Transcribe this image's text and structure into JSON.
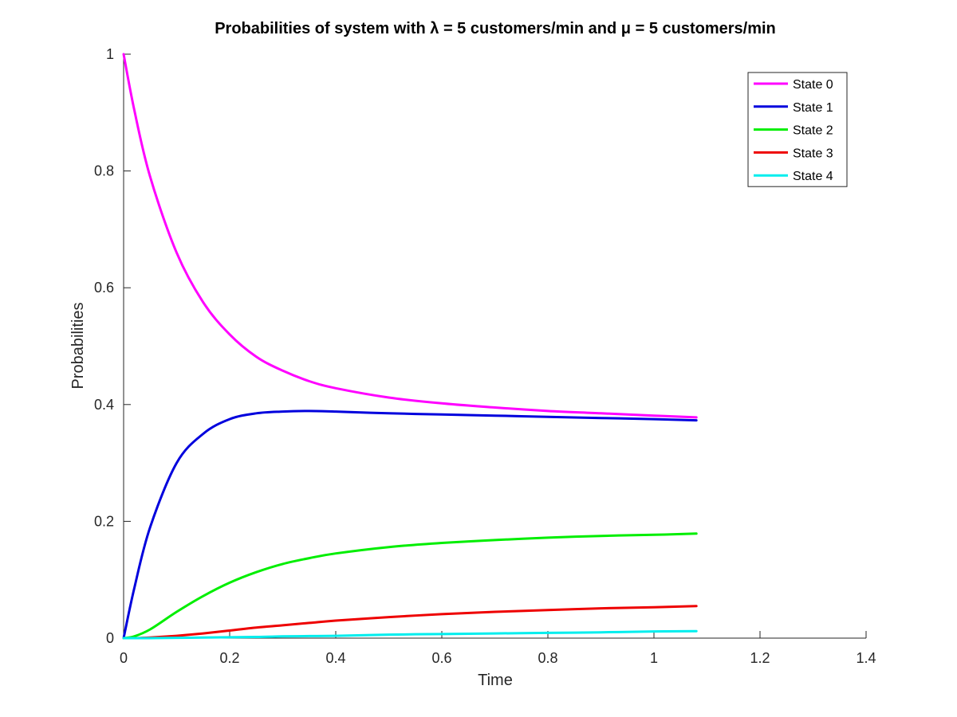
{
  "chart_data": {
    "type": "line",
    "title": "Probabilities of system with λ = 5 customers/min and μ = 5 customers/min",
    "xlabel": "Time",
    "ylabel": "Probabilities",
    "xlim": [
      0,
      1.4
    ],
    "ylim": [
      0,
      1
    ],
    "xticks": [
      0,
      0.2,
      0.4,
      0.6,
      0.8,
      1,
      1.2,
      1.4
    ],
    "xtick_labels": [
      "0",
      "0.2",
      "0.4",
      "0.6",
      "0.8",
      "1",
      "1.2",
      "1.4"
    ],
    "yticks": [
      0,
      0.2,
      0.4,
      0.6,
      0.8,
      1
    ],
    "ytick_labels": [
      "0",
      "0.2",
      "0.4",
      "0.6",
      "0.8",
      "1"
    ],
    "grid": false,
    "legend_position": "top-right",
    "x": [
      0,
      0.02,
      0.05,
      0.1,
      0.15,
      0.2,
      0.25,
      0.3,
      0.35,
      0.4,
      0.5,
      0.6,
      0.7,
      0.8,
      0.9,
      1.0,
      1.08
    ],
    "series": [
      {
        "name": "State 0",
        "color": "#ff00ff",
        "values": [
          1.0,
          0.905,
          0.79,
          0.66,
          0.575,
          0.52,
          0.482,
          0.458,
          0.44,
          0.428,
          0.412,
          0.402,
          0.395,
          0.389,
          0.385,
          0.381,
          0.378
        ]
      },
      {
        "name": "State 1",
        "color": "#0000dd",
        "values": [
          0.0,
          0.085,
          0.19,
          0.3,
          0.35,
          0.375,
          0.385,
          0.388,
          0.389,
          0.388,
          0.385,
          0.383,
          0.381,
          0.379,
          0.377,
          0.375,
          0.373
        ]
      },
      {
        "name": "State 2",
        "color": "#00ee00",
        "values": [
          0.0,
          0.003,
          0.015,
          0.045,
          0.072,
          0.095,
          0.113,
          0.127,
          0.137,
          0.145,
          0.156,
          0.163,
          0.168,
          0.172,
          0.175,
          0.177,
          0.179
        ]
      },
      {
        "name": "State 3",
        "color": "#ee0000",
        "values": [
          0.0,
          0.0,
          0.001,
          0.004,
          0.008,
          0.013,
          0.018,
          0.022,
          0.026,
          0.03,
          0.036,
          0.041,
          0.045,
          0.048,
          0.051,
          0.053,
          0.055
        ]
      },
      {
        "name": "State 4",
        "color": "#00eeee",
        "values": [
          0.0,
          0.0,
          0.0,
          0.0005,
          0.001,
          0.0015,
          0.002,
          0.003,
          0.0035,
          0.004,
          0.006,
          0.007,
          0.008,
          0.009,
          0.01,
          0.0115,
          0.012
        ]
      }
    ]
  }
}
